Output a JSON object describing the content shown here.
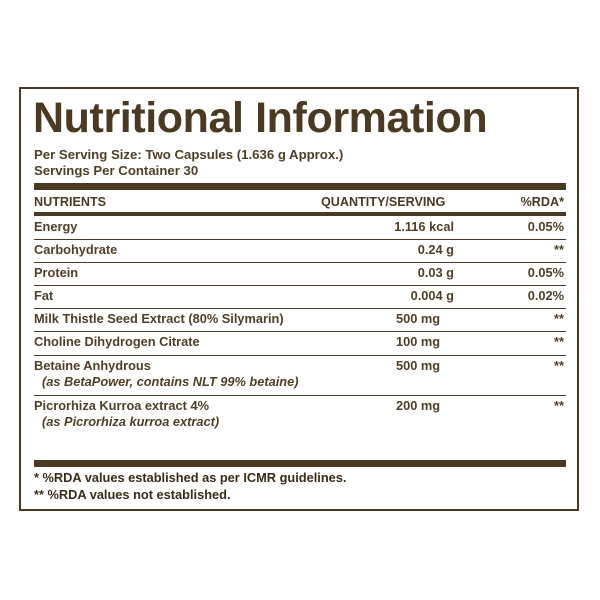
{
  "label": {
    "title": "Nutritional Information",
    "serving_size": "Per Serving Size: Two Capsules (1.636 g Approx.)",
    "servings_per_container": "Servings Per Container 30",
    "headers": {
      "nutrients": "NUTRIENTS",
      "quantity": "QUANTITY/SERVING",
      "rda": "%RDA*"
    },
    "rows": [
      {
        "name": "Energy",
        "quantity": "1.116 kcal",
        "rda": "0.05%"
      },
      {
        "name": "Carbohydrate",
        "quantity": "0.24 g",
        "rda": "**"
      },
      {
        "name": "Protein",
        "quantity": "0.03 g",
        "rda": "0.05%"
      },
      {
        "name": "Fat",
        "quantity": "0.004 g",
        "rda": "0.02%"
      },
      {
        "name": "Milk Thistle Seed Extract (80% Silymarin)",
        "quantity": "500 mg",
        "rda": "**"
      },
      {
        "name": "Choline Dihydrogen Citrate",
        "quantity": "100 mg",
        "rda": "**"
      },
      {
        "name": "Betaine Anhydrous",
        "sub": "(as BetaPower, contains NLT 99% betaine)",
        "quantity": "500 mg",
        "rda": "**"
      },
      {
        "name": "Picrorhiza Kurroa extract 4%",
        "sub": "(as Picrorhiza kurroa extract)",
        "quantity": "200 mg",
        "rda": "**"
      }
    ],
    "footnotes": [
      "* %RDA values established as per ICMR guidelines.",
      "** %RDA values not established."
    ]
  }
}
